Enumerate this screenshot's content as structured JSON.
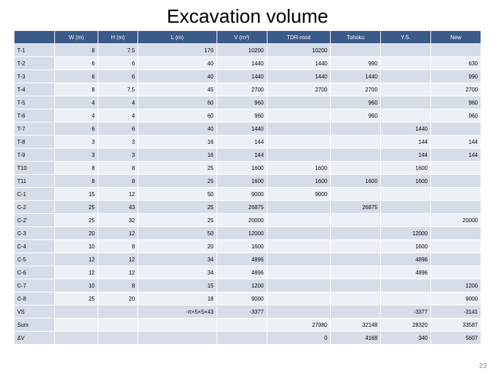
{
  "title": "Excavation volume",
  "page_number": "23",
  "columns": [
    "",
    "W (m)",
    "H (m)",
    "L (m)",
    "V (m³)",
    "TDR-mod",
    "Tohoku",
    "Y.S.",
    "New"
  ],
  "rows": [
    [
      "T-1",
      "8",
      "7.5",
      "170",
      "10200",
      "10200",
      "",
      "",
      ""
    ],
    [
      "T-2",
      "6",
      "6",
      "40",
      "1440",
      "1440",
      "990",
      "",
      "630"
    ],
    [
      "T-3",
      "6",
      "6",
      "40",
      "1440",
      "1440",
      "1440",
      "",
      "990"
    ],
    [
      "T-4",
      "8",
      "7.5",
      "45",
      "2700",
      "2700",
      "2700",
      "",
      "2700"
    ],
    [
      "T-5",
      "4",
      "4",
      "60",
      "960",
      "",
      "960",
      "",
      "960"
    ],
    [
      "T-6",
      "4",
      "4",
      "60",
      "960",
      "",
      "960",
      "",
      "960"
    ],
    [
      "T-7",
      "6",
      "6",
      "40",
      "1440",
      "",
      "",
      "1440",
      ""
    ],
    [
      "T-8",
      "3",
      "3",
      "16",
      "144",
      "",
      "",
      "144",
      "144"
    ],
    [
      "T-9",
      "3",
      "3",
      "16",
      "144",
      "",
      "",
      "144",
      "144"
    ],
    [
      "T10",
      "8",
      "8",
      "25",
      "1600",
      "1600",
      "",
      "1600",
      ""
    ],
    [
      "T11",
      "8",
      "8",
      "25",
      "1600",
      "1600",
      "1600",
      "1600",
      ""
    ],
    [
      "C-1",
      "15",
      "12",
      "50",
      "9000",
      "9000",
      "",
      "",
      ""
    ],
    [
      "C-2",
      "25",
      "43",
      "25",
      "26875",
      "",
      "26875",
      "",
      ""
    ],
    [
      "C-2'",
      "25",
      "32",
      "25",
      "20000",
      "",
      "",
      "",
      "20000"
    ],
    [
      "C-3",
      "20",
      "12",
      "50",
      "12000",
      "",
      "",
      "12000",
      ""
    ],
    [
      "C-4",
      "10",
      "8",
      "20",
      "1600",
      "",
      "",
      "1600",
      ""
    ],
    [
      "C-5",
      "12",
      "12",
      "34",
      "4896",
      "",
      "",
      "4896",
      ""
    ],
    [
      "C-6",
      "12",
      "12",
      "34",
      "4896",
      "",
      "",
      "4896",
      ""
    ],
    [
      "C-7",
      "10",
      "8",
      "15",
      "1200",
      "",
      "",
      "",
      "1200"
    ],
    [
      "C-8",
      "25",
      "20",
      "18",
      "9000",
      "",
      "",
      "",
      "9000"
    ],
    [
      "VS",
      "",
      "",
      "-π×5×5×43",
      "-3377",
      "",
      "",
      "-3377",
      "-3141"
    ],
    [
      "Sum",
      "",
      "",
      "",
      "",
      "27980",
      "32148",
      "28320",
      "33587"
    ],
    [
      "ΔV",
      "",
      "",
      "",
      "",
      "0",
      "4168",
      "340",
      "5607"
    ]
  ]
}
